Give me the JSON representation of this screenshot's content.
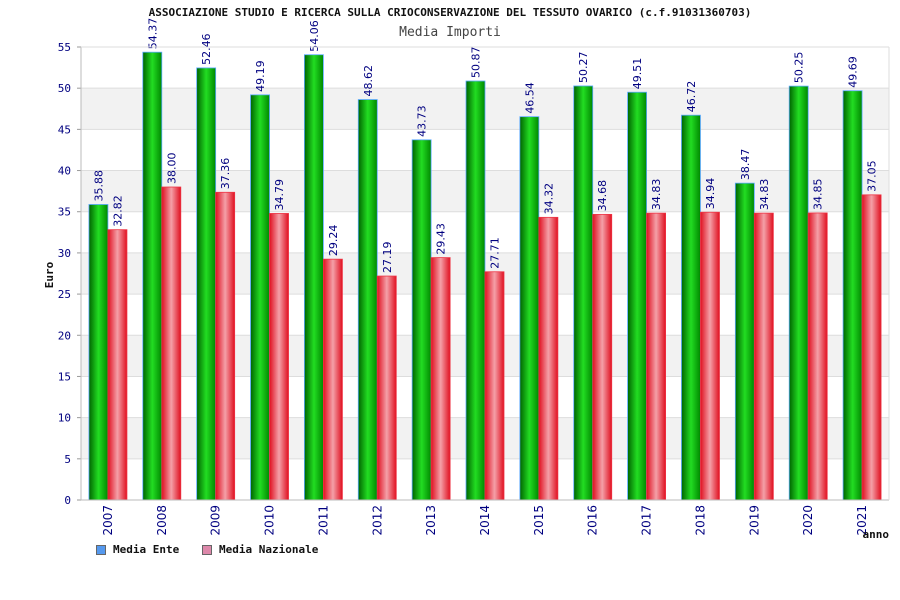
{
  "chart_data": {
    "type": "bar",
    "title": "ASSOCIAZIONE STUDIO E RICERCA SULLA CRIOCONSERVAZIONE DEL TESSUTO OVARICO (c.f.91031360703)",
    "subtitle": "Media Importi",
    "xlabel": "anno",
    "ylabel": "Euro",
    "categories": [
      "2007",
      "2008",
      "2009",
      "2010",
      "2011",
      "2012",
      "2013",
      "2014",
      "2015",
      "2016",
      "2017",
      "2018",
      "2019",
      "2020",
      "2021"
    ],
    "series": [
      {
        "name": "Media Ente",
        "color": "#00b000",
        "legend_color": "#5599ee",
        "values": [
          35.88,
          54.37,
          52.46,
          49.19,
          54.06,
          48.62,
          43.73,
          50.87,
          46.54,
          50.27,
          49.51,
          46.72,
          38.47,
          50.25,
          49.69
        ],
        "labels": [
          "35.88",
          "54.37",
          "52.46",
          "49.19",
          "54.06",
          "48.62",
          "43.73",
          "50.87",
          "46.54",
          "50.27",
          "49.51",
          "46.72",
          "38.47",
          "50.25",
          "49.69"
        ]
      },
      {
        "name": "Media Nazionale",
        "color": "#e82030",
        "legend_color": "#dd88aa",
        "values": [
          32.82,
          38.0,
          37.36,
          34.79,
          29.24,
          27.19,
          29.43,
          27.71,
          34.32,
          34.68,
          34.83,
          34.94,
          34.83,
          34.85,
          37.05
        ],
        "labels": [
          "32.82",
          "38.00",
          "37.36",
          "34.79",
          "29.24",
          "27.19",
          "29.43",
          "27.71",
          "34.32",
          "34.68",
          "34.83",
          "34.94",
          "34.83",
          "34.85",
          "37.05"
        ]
      }
    ],
    "ylim": [
      0,
      55
    ],
    "yticks": [
      "0",
      "5",
      "10",
      "15",
      "20",
      "25",
      "30",
      "35",
      "40",
      "45",
      "50",
      "55"
    ],
    "grid": true,
    "legend_position": "bottom-left"
  }
}
